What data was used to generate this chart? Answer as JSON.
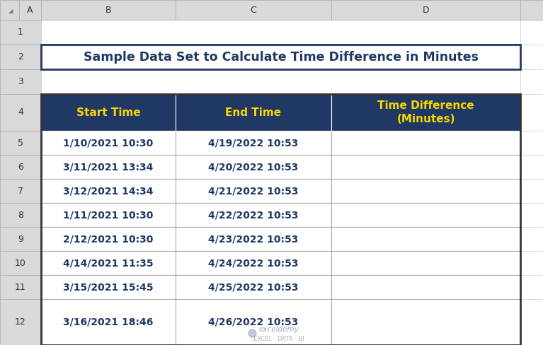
{
  "title": "Sample Data Set to Calculate Time Difference in Minutes",
  "title_color": "#1F3864",
  "title_fontsize": 12.5,
  "header_bg": "#1F3864",
  "header_text_color": "#FFD700",
  "header_labels": [
    "Start Time",
    "End Time",
    "Time Difference\n(Minutes)"
  ],
  "data_rows": [
    [
      "1/10/2021 10:30",
      "4/19/2022 10:53",
      ""
    ],
    [
      "3/11/2021 13:34",
      "4/20/2022 10:53",
      ""
    ],
    [
      "3/12/2021 14:34",
      "4/21/2022 10:53",
      ""
    ],
    [
      "1/11/2021 10:30",
      "4/22/2022 10:53",
      ""
    ],
    [
      "2/12/2021 10:30",
      "4/23/2022 10:53",
      ""
    ],
    [
      "4/14/2021 11:35",
      "4/24/2022 10:53",
      ""
    ],
    [
      "3/15/2021 15:45",
      "4/25/2022 10:53",
      ""
    ],
    [
      "3/16/2021 18:46",
      "4/26/2022 10:53",
      ""
    ]
  ],
  "cell_text_color": "#1F3864",
  "cell_fontsize": 10.0,
  "spreadsheet_bg": "#D9D9D9",
  "col_header_bg": "#D9D9D9",
  "watermark_line1": "exceldemy",
  "watermark_line2": "EXCEL · DATA · BI",
  "fig_width": 7.67,
  "fig_height": 4.88,
  "dpi": 100,
  "row_labels": [
    "1",
    "2",
    "3",
    "4",
    "5",
    "6",
    "7",
    "8",
    "9",
    "10",
    "11",
    "12"
  ],
  "col_labels": [
    "A",
    "B",
    "C",
    "D"
  ],
  "title_border_color": "#1F3864",
  "table_border_color": "#444444"
}
